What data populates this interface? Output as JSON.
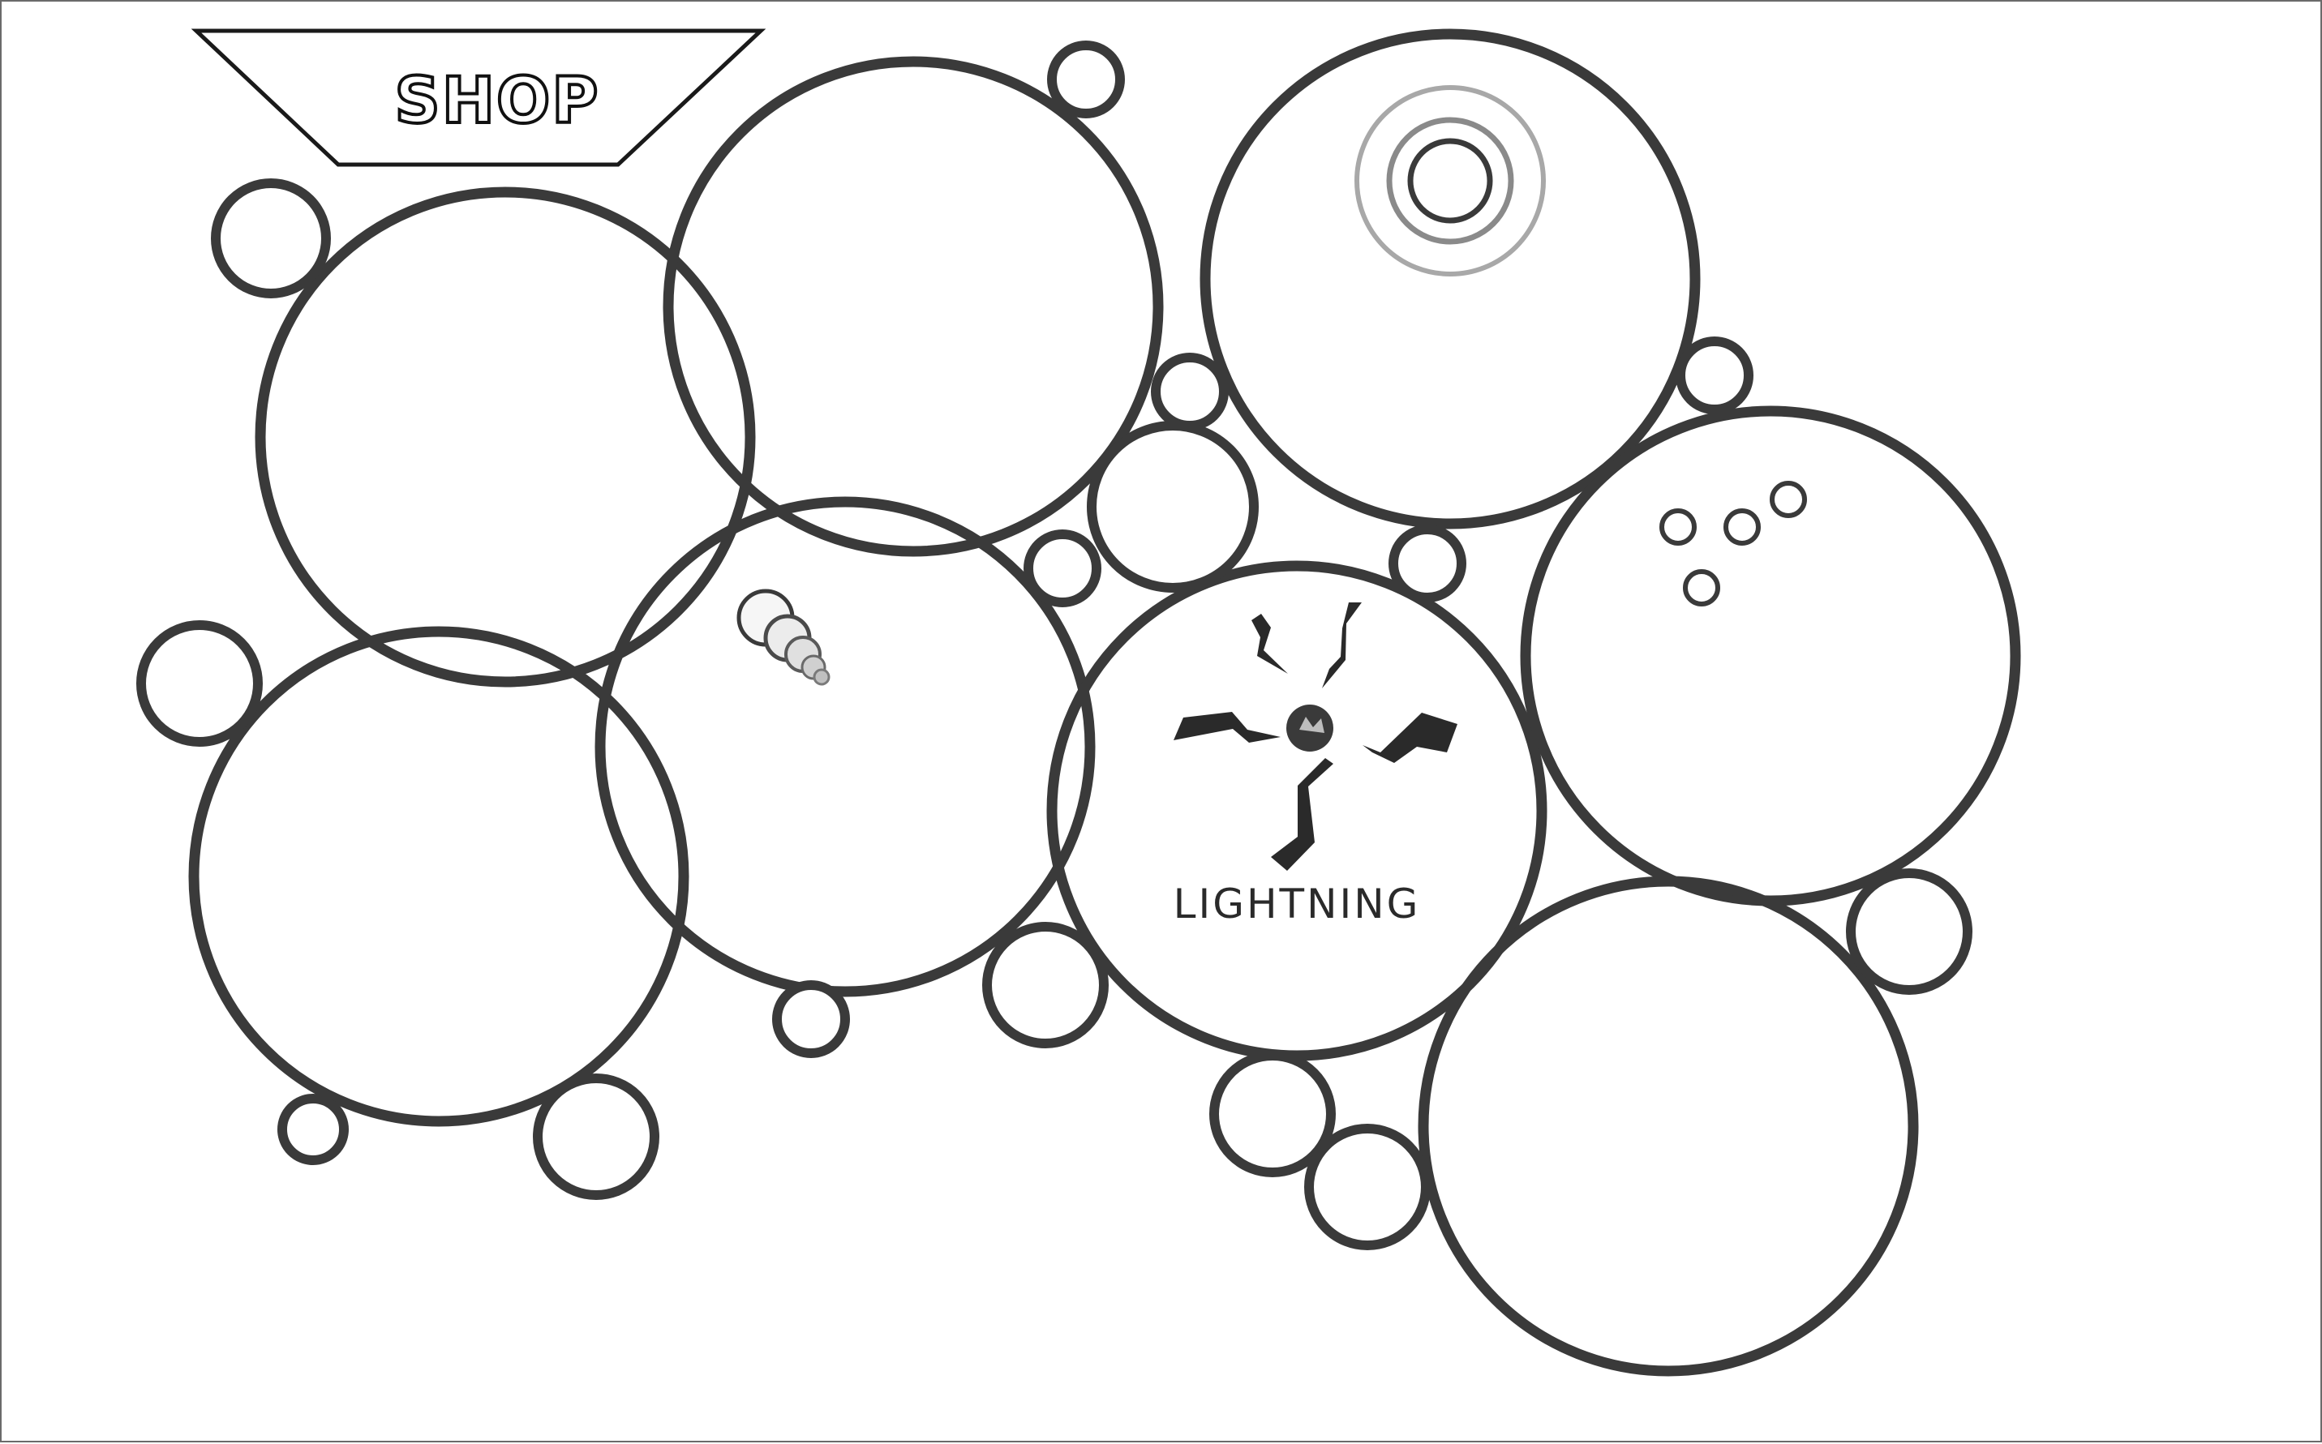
{
  "shop": {
    "label": "SHOP"
  },
  "upgrades": [
    {
      "id": "lightning",
      "label": "LIGHTNING",
      "icon": "lightning-icon"
    },
    {
      "id": "target",
      "label": "",
      "icon": "target-rings-icon"
    },
    {
      "id": "bubbles",
      "label": "",
      "icon": "bubble-cluster-icon"
    },
    {
      "id": "trail",
      "label": "",
      "icon": "bubble-trail-icon"
    }
  ],
  "colors": {
    "ring": "#3a3a3a",
    "background": "#ffffff",
    "frame": "#6a6a6a",
    "target_outer": "#a8a8a8",
    "target_inner": "#3a3a3a"
  }
}
